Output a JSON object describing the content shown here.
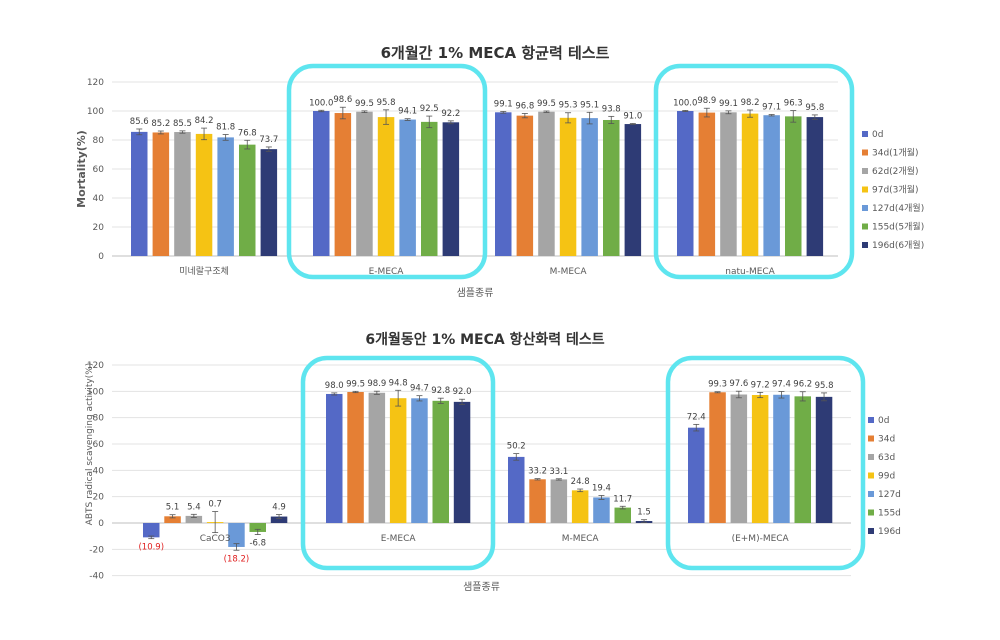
{
  "chart_data": [
    {
      "type": "bar",
      "title": "6개월간 1% MECA 항균력 테스트",
      "xlabel": "샘플종류",
      "ylabel": "Mortality(%)",
      "ylim": [
        0,
        120
      ],
      "yticks": [
        0,
        20,
        40,
        60,
        80,
        100,
        120
      ],
      "grid": true,
      "legend": "right",
      "categories": [
        "미네랄구조체",
        "E-MECA",
        "M-MECA",
        "natu-MECA"
      ],
      "highlighted_categories": [
        "E-MECA",
        "natu-MECA"
      ],
      "highlight_color": "#5ee5ef",
      "series": [
        {
          "name": "0d",
          "color": "#5469c6",
          "values": [
            85.6,
            100.0,
            99.1,
            100.0
          ],
          "labels": [
            "85.6",
            "100.0",
            "99.1",
            "100.0"
          ],
          "errors": [
            2.0,
            0.5,
            0.6,
            0.4
          ]
        },
        {
          "name": "34d(1개월)",
          "color": "#e57f34",
          "values": [
            85.2,
            98.6,
            96.8,
            98.9
          ],
          "labels": [
            "85.2",
            "98.6",
            "96.8",
            "98.9"
          ],
          "errors": [
            1.0,
            4.0,
            1.5,
            3.0
          ]
        },
        {
          "name": "62d(2개월)",
          "color": "#a5a5a5",
          "values": [
            85.5,
            99.5,
            99.5,
            99.1
          ],
          "labels": [
            "85.5",
            "99.5",
            "99.5",
            "99.1"
          ],
          "errors": [
            0.8,
            0.6,
            0.5,
            1.0
          ]
        },
        {
          "name": "97d(3개월)",
          "color": "#f5c314",
          "values": [
            84.2,
            95.8,
            95.3,
            98.2
          ],
          "labels": [
            "84.2",
            "95.8",
            "95.3",
            "98.2"
          ],
          "errors": [
            4.0,
            5.0,
            3.5,
            2.5
          ]
        },
        {
          "name": "127d(4개월)",
          "color": "#6a99d8",
          "values": [
            81.8,
            94.1,
            95.1,
            97.1
          ],
          "labels": [
            "81.8",
            "94.1",
            "95.1",
            "97.1"
          ],
          "errors": [
            2.0,
            0.6,
            4.0,
            0.5
          ]
        },
        {
          "name": "155d(5개월)",
          "color": "#70ad47",
          "values": [
            76.8,
            92.5,
            93.8,
            96.3
          ],
          "labels": [
            "76.8",
            "92.5",
            "93.8",
            "96.3"
          ],
          "errors": [
            3.0,
            4.0,
            2.5,
            4.0
          ]
        },
        {
          "name": "196d(6개월)",
          "color": "#2e3b75",
          "values": [
            73.7,
            92.2,
            91.0,
            95.8
          ],
          "labels": [
            "73.7",
            "92.2",
            "91.0",
            "95.8"
          ],
          "errors": [
            1.5,
            1.0,
            0.4,
            1.5
          ]
        }
      ]
    },
    {
      "type": "bar",
      "title": "6개월동안 1% MECA 항산화력 테스트",
      "xlabel": "샘플종류",
      "ylabel": "ABTS radical scavenging activity(%)",
      "ylim": [
        -40,
        120
      ],
      "yticks": [
        -40,
        -20,
        0,
        20,
        40,
        60,
        80,
        100,
        120
      ],
      "grid": true,
      "legend": "right",
      "categories": [
        "CaCO3",
        "E-MECA",
        "M-MECA",
        "(E+M)-MECA"
      ],
      "highlighted_categories": [
        "E-MECA",
        "(E+M)-MECA"
      ],
      "highlight_color": "#5ee5ef",
      "series": [
        {
          "name": "0d",
          "color": "#5469c6",
          "values": [
            -10.9,
            98.0,
            50.2,
            72.4
          ],
          "labels": [
            "(10.9)",
            "98.0",
            "50.2",
            "72.4"
          ],
          "errors": [
            1.0,
            0.8,
            2.5,
            2.5
          ]
        },
        {
          "name": "34d",
          "color": "#e57f34",
          "values": [
            5.1,
            99.5,
            33.2,
            99.3
          ],
          "labels": [
            "5.1",
            "99.5",
            "33.2",
            "99.3"
          ],
          "errors": [
            1.2,
            0.5,
            0.5,
            0.4
          ]
        },
        {
          "name": "63d",
          "color": "#a5a5a5",
          "values": [
            5.4,
            98.9,
            33.1,
            97.6
          ],
          "labels": [
            "5.4",
            "98.9",
            "33.1",
            "97.6"
          ],
          "errors": [
            1.2,
            1.2,
            0.5,
            2.5
          ]
        },
        {
          "name": "99d",
          "color": "#f5c314",
          "values": [
            0.7,
            94.8,
            24.8,
            97.2
          ],
          "labels": [
            "0.7",
            "94.8",
            "24.8",
            "97.2"
          ],
          "errors": [
            8.0,
            6.0,
            1.0,
            2.0
          ]
        },
        {
          "name": "127d",
          "color": "#6a99d8",
          "values": [
            -18.2,
            94.7,
            19.4,
            97.4
          ],
          "labels": [
            "(18.2)",
            "94.7",
            "19.4",
            "97.4"
          ],
          "errors": [
            2.5,
            2.0,
            1.5,
            2.5
          ]
        },
        {
          "name": "155d",
          "color": "#70ad47",
          "values": [
            -6.8,
            92.8,
            11.7,
            96.2
          ],
          "labels": [
            "-6.8",
            "92.8",
            "11.7",
            "96.2"
          ],
          "errors": [
            2.0,
            2.0,
            1.0,
            3.5
          ]
        },
        {
          "name": "196d",
          "color": "#2e3b75",
          "values": [
            4.9,
            92.0,
            1.5,
            95.8
          ],
          "labels": [
            "4.9",
            "92.0",
            "1.5",
            "95.8"
          ],
          "errors": [
            1.5,
            2.0,
            1.0,
            3.0
          ]
        }
      ]
    }
  ]
}
